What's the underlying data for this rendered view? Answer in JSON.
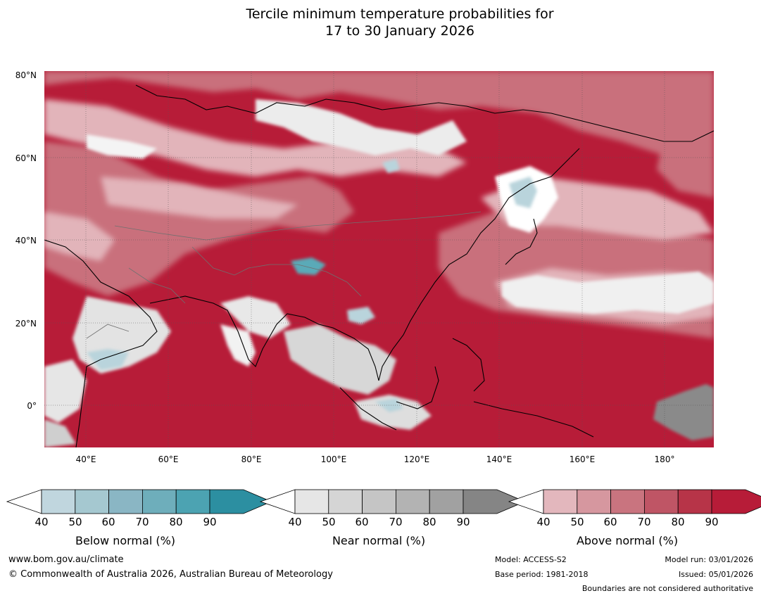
{
  "title": {
    "line1": "Tercile minimum temperature probabilities for",
    "line2": "17 to 30 January 2026"
  },
  "map": {
    "lat_labels": [
      "80°N",
      "60°N",
      "40°N",
      "20°N",
      "0°"
    ],
    "lon_labels": [
      "40°E",
      "60°E",
      "80°E",
      "100°E",
      "120°E",
      "140°E",
      "160°E",
      "180°"
    ],
    "lat_values": [
      80,
      60,
      40,
      20,
      0
    ],
    "lon_values": [
      40,
      60,
      80,
      100,
      120,
      140,
      160,
      180
    ],
    "extent": {
      "lon_min": 30,
      "lon_max": 192,
      "lat_min": -10,
      "lat_max": 81
    },
    "colors": {
      "above_dominant": "#b71c38",
      "above_mid": "#c85566",
      "above_light": "#e2b4ba",
      "near_light": "#e8e8e8",
      "near_mid": "#c8c8c8",
      "near_dark": "#8c8c8c",
      "below_light": "#b9d4dc",
      "below_mid": "#5aaab8"
    }
  },
  "colorbars": [
    {
      "title": "Below normal (%)",
      "ticks": [
        "40",
        "50",
        "60",
        "70",
        "80",
        "90"
      ],
      "colors": [
        "#c0d6de",
        "#a5c8d0",
        "#8ab6c4",
        "#6eaebb",
        "#4ca3b2",
        "#2c8fa1"
      ]
    },
    {
      "title": "Near normal (%)",
      "ticks": [
        "40",
        "50",
        "60",
        "70",
        "80",
        "90"
      ],
      "colors": [
        "#e6e6e6",
        "#d5d5d5",
        "#c5c5c5",
        "#b3b3b3",
        "#a1a1a1",
        "#858585"
      ]
    },
    {
      "title": "Above normal (%)",
      "ticks": [
        "40",
        "50",
        "60",
        "70",
        "80",
        "90"
      ],
      "colors": [
        "#e3b7bd",
        "#d6979f",
        "#c9747f",
        "#bf5565",
        "#b73448",
        "#b71c38"
      ]
    }
  ],
  "footer": {
    "url": "www.bom.gov.au/climate",
    "copyright": "© Commonwealth of Australia 2026, Australian Bureau of Meteorology",
    "model": "Model: ACCESS-S2",
    "base_period": "Base period: 1981-2018",
    "model_run": "Model run: 03/01/2026",
    "issued": "Issued: 05/01/2026",
    "disclaimer": "Boundaries are not considered authoritative"
  }
}
